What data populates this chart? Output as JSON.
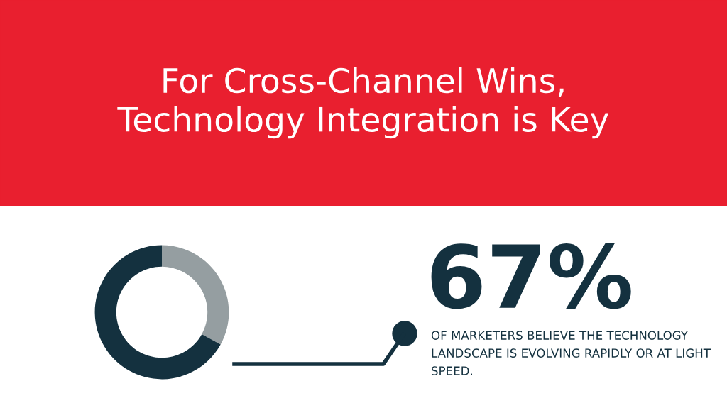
{
  "chart_data": {
    "type": "donut",
    "title": "For Cross-Channel Wins,\nTechnology Integration is Key",
    "categories": [
      null,
      null
    ],
    "values": [
      33,
      67
    ],
    "colors": [
      "#959ea1",
      "#14313f"
    ],
    "annotations": [
      "67%",
      "OF MARKETERS BELIEVE THE TECHNOLOGY LANDSCAPE IS EVOLVING RAPIDLY OR AT LIGHT SPEED."
    ]
  }
}
